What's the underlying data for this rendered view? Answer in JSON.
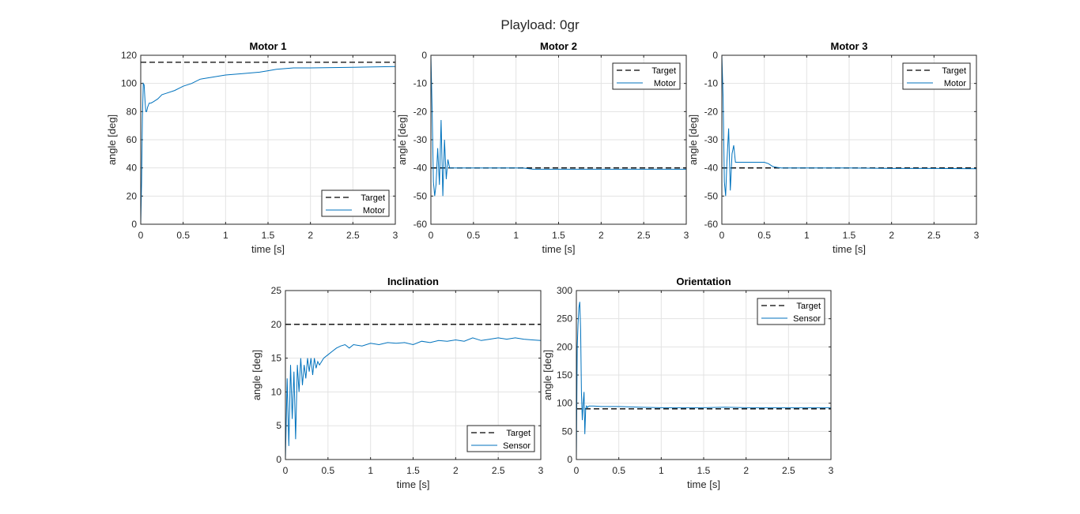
{
  "figure": {
    "suptitle": "Playload: 0gr"
  },
  "colors": {
    "target": "#000000",
    "motor": "#0072BD",
    "grid": "#e3e3e3",
    "axes": "#262626"
  },
  "chart_data": [
    {
      "type": "line",
      "title": "Motor 1",
      "xlabel": "time [s]",
      "ylabel": "angle [deg]",
      "xlim": [
        0,
        3
      ],
      "ylim": [
        0,
        120
      ],
      "xticks": [
        "0",
        "0.5",
        "1",
        "1.5",
        "2",
        "2.5",
        "3"
      ],
      "yticks": [
        "0",
        "20",
        "40",
        "60",
        "80",
        "100",
        "120"
      ],
      "grid": true,
      "legend_position": "bottom-right",
      "series": [
        {
          "name": "Target",
          "style": "dashed",
          "x": [
            0,
            3
          ],
          "y": [
            115,
            115
          ]
        },
        {
          "name": "Motor",
          "style": "solid",
          "x": [
            0,
            0.01,
            0.02,
            0.03,
            0.04,
            0.05,
            0.06,
            0.07,
            0.08,
            0.1,
            0.12,
            0.15,
            0.2,
            0.25,
            0.3,
            0.4,
            0.5,
            0.6,
            0.7,
            0.8,
            1.0,
            1.2,
            1.4,
            1.5,
            1.6,
            1.8,
            2.0,
            2.5,
            3.0
          ],
          "y": [
            0,
            30,
            75,
            100,
            99,
            88,
            80,
            80,
            83,
            86,
            86,
            87,
            89,
            92,
            93,
            95,
            98,
            100,
            103,
            104,
            106,
            107,
            108,
            109,
            110,
            111,
            111,
            111.5,
            112
          ]
        }
      ]
    },
    {
      "type": "line",
      "title": "Motor 2",
      "xlabel": "time [s]",
      "ylabel": "angle [deg]",
      "xlim": [
        0,
        3
      ],
      "ylim": [
        -60,
        0
      ],
      "xticks": [
        "0",
        "0.5",
        "1",
        "1.5",
        "2",
        "2.5",
        "3"
      ],
      "yticks": [
        "-60",
        "-50",
        "-40",
        "-30",
        "-20",
        "-10",
        "0"
      ],
      "grid": true,
      "legend_position": "top-right",
      "series": [
        {
          "name": "Target",
          "style": "dashed",
          "x": [
            0,
            3
          ],
          "y": [
            -40,
            -40
          ]
        },
        {
          "name": "Motor",
          "style": "solid",
          "x": [
            0,
            0.015,
            0.03,
            0.045,
            0.06,
            0.08,
            0.1,
            0.12,
            0.14,
            0.16,
            0.18,
            0.2,
            0.22,
            0.25,
            0.3,
            0.5,
            1.0,
            1.1,
            1.2,
            1.5,
            2.0,
            2.5,
            3.0
          ],
          "y": [
            0,
            -20,
            -45,
            -50,
            -46,
            -33,
            -46,
            -23,
            -50,
            -30,
            -44,
            -37,
            -40,
            -40,
            -40,
            -40,
            -40,
            -40.1,
            -40.5,
            -40.5,
            -40.5,
            -40.5,
            -40.5
          ]
        }
      ]
    },
    {
      "type": "line",
      "title": "Motor 3",
      "xlabel": "time [s]",
      "ylabel": "angle [deg]",
      "xlim": [
        0,
        3
      ],
      "ylim": [
        -60,
        0
      ],
      "xticks": [
        "0",
        "0.5",
        "1",
        "1.5",
        "2",
        "2.5",
        "3"
      ],
      "yticks": [
        "-60",
        "-50",
        "-40",
        "-30",
        "-20",
        "-10",
        "0"
      ],
      "grid": true,
      "legend_position": "top-right",
      "series": [
        {
          "name": "Target",
          "style": "dashed",
          "x": [
            0,
            3
          ],
          "y": [
            -40,
            -40
          ]
        },
        {
          "name": "Motor",
          "style": "solid",
          "x": [
            0,
            0.015,
            0.03,
            0.045,
            0.06,
            0.08,
            0.1,
            0.12,
            0.14,
            0.16,
            0.18,
            0.2,
            0.3,
            0.5,
            0.55,
            0.6,
            0.65,
            0.7,
            0.8,
            1.0,
            1.5,
            2.0,
            2.5,
            3.0
          ],
          "y": [
            0,
            -15,
            -45,
            -50,
            -38,
            -26,
            -48,
            -35,
            -32,
            -38,
            -38,
            -38,
            -38,
            -38,
            -38.5,
            -39.5,
            -39.8,
            -40,
            -40,
            -40,
            -40,
            -40.2,
            -40.2,
            -40.3
          ]
        }
      ]
    },
    {
      "type": "line",
      "title": "Inclination",
      "xlabel": "time [s]",
      "ylabel": "angle [deg]",
      "xlim": [
        0,
        3
      ],
      "ylim": [
        0,
        25
      ],
      "xticks": [
        "0",
        "0.5",
        "1",
        "1.5",
        "2",
        "2.5",
        "3"
      ],
      "yticks": [
        "0",
        "5",
        "10",
        "15",
        "20",
        "25"
      ],
      "grid": true,
      "legend_position": "bottom-right",
      "series": [
        {
          "name": "Target",
          "style": "dashed",
          "x": [
            0,
            3
          ],
          "y": [
            20,
            20
          ]
        },
        {
          "name": "Sensor",
          "style": "solid",
          "x": [
            0,
            0.02,
            0.04,
            0.06,
            0.08,
            0.1,
            0.12,
            0.14,
            0.16,
            0.18,
            0.2,
            0.22,
            0.24,
            0.26,
            0.28,
            0.3,
            0.32,
            0.34,
            0.36,
            0.38,
            0.4,
            0.45,
            0.5,
            0.55,
            0.6,
            0.65,
            0.7,
            0.75,
            0.8,
            0.9,
            1.0,
            1.1,
            1.2,
            1.3,
            1.4,
            1.5,
            1.6,
            1.7,
            1.8,
            1.9,
            2.0,
            2.1,
            2.2,
            2.3,
            2.4,
            2.5,
            2.6,
            2.7,
            2.8,
            2.9,
            3.0
          ],
          "y": [
            0,
            12,
            2,
            14,
            6,
            13,
            3,
            14,
            10,
            15,
            11,
            14,
            12,
            15,
            13,
            15,
            12.5,
            15,
            13.5,
            14.5,
            14,
            15,
            15.5,
            16,
            16.5,
            16.8,
            17,
            16.5,
            17,
            16.8,
            17.2,
            17,
            17.3,
            17.2,
            17.3,
            17,
            17.5,
            17.3,
            17.6,
            17.5,
            17.7,
            17.5,
            18,
            17.6,
            17.8,
            18,
            17.8,
            18,
            17.8,
            17.7,
            17.6
          ]
        }
      ]
    },
    {
      "type": "line",
      "title": "Orientation",
      "xlabel": "time [s]",
      "ylabel": "angle [deg]",
      "xlim": [
        0,
        3
      ],
      "ylim": [
        0,
        300
      ],
      "xticks": [
        "0",
        "0.5",
        "1",
        "1.5",
        "2",
        "2.5",
        "3"
      ],
      "yticks": [
        "0",
        "50",
        "100",
        "150",
        "200",
        "250",
        "300"
      ],
      "grid": true,
      "legend_position": "top-right",
      "series": [
        {
          "name": "Target",
          "style": "dashed",
          "x": [
            0,
            3
          ],
          "y": [
            90,
            90
          ]
        },
        {
          "name": "Sensor",
          "style": "solid",
          "x": [
            0,
            0.01,
            0.02,
            0.03,
            0.04,
            0.05,
            0.06,
            0.07,
            0.08,
            0.09,
            0.1,
            0.11,
            0.12,
            0.13,
            0.14,
            0.15,
            0.2,
            0.3,
            0.5,
            0.75,
            1.0,
            1.25,
            1.5,
            1.75,
            2.0,
            2.25,
            2.5,
            2.75,
            3.0
          ],
          "y": [
            0,
            200,
            240,
            270,
            280,
            230,
            120,
            70,
            100,
            120,
            45,
            90,
            95,
            92,
            94,
            95,
            95,
            94,
            94,
            93,
            92,
            92,
            92,
            93,
            92,
            92,
            92,
            92,
            92
          ]
        }
      ]
    }
  ]
}
